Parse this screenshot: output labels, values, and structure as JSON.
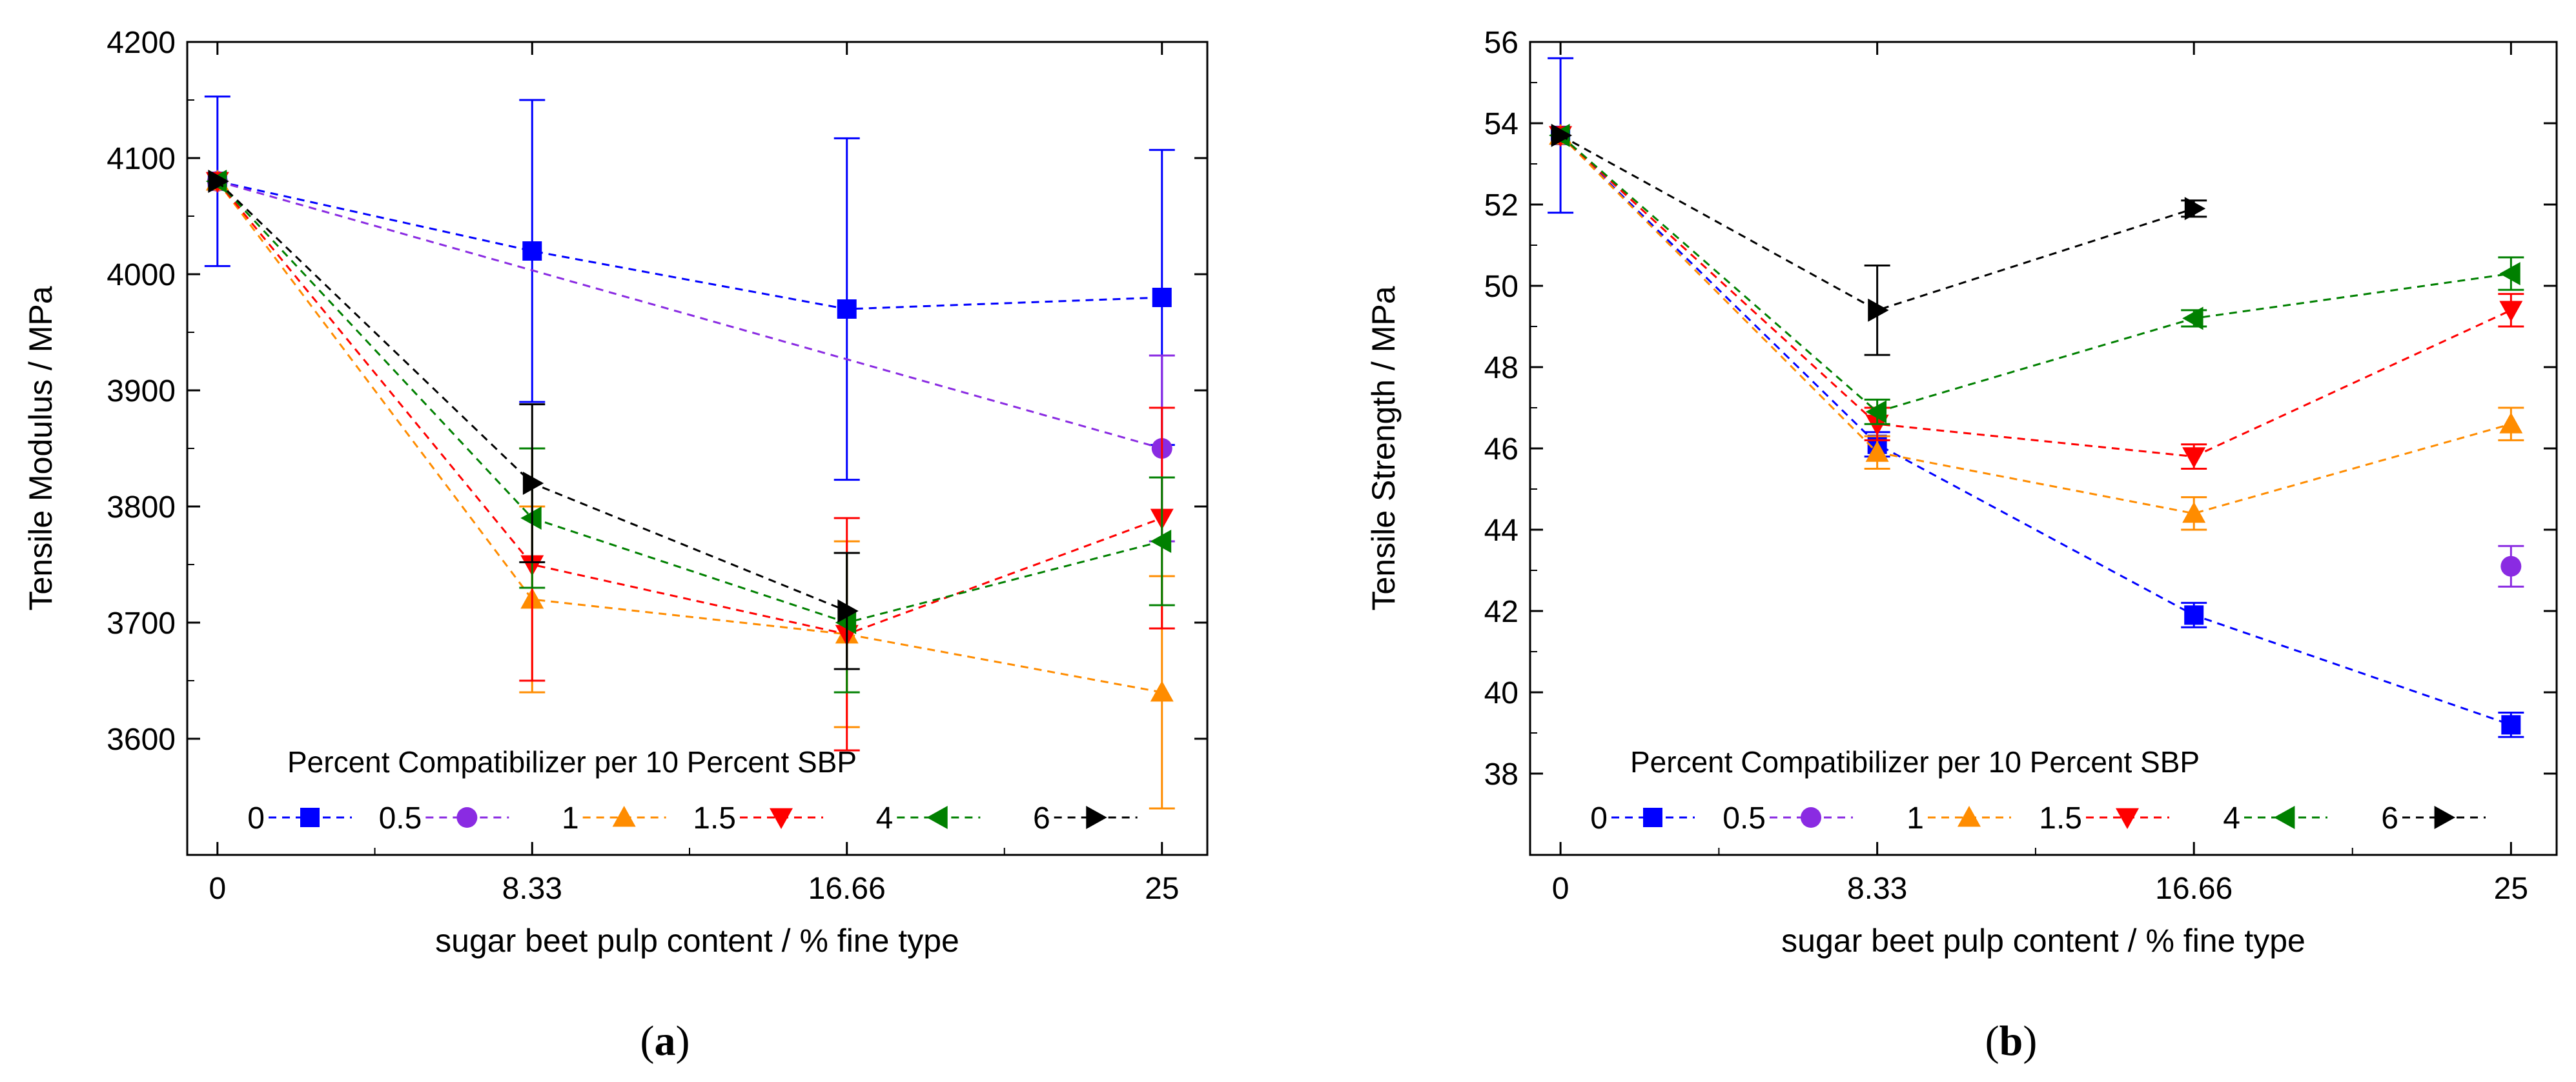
{
  "figure": {
    "legend_title": "Percent Compatibilizer per 10 Percent SBP",
    "series_styles": [
      {
        "name": "0",
        "color": "#0000ff",
        "marker": "square"
      },
      {
        "name": "0.5",
        "color": "#8a2be2",
        "marker": "circle"
      },
      {
        "name": "1",
        "color": "#ff8c00",
        "marker": "triangle-up"
      },
      {
        "name": "1.5",
        "color": "#ff0000",
        "marker": "triangle-down"
      },
      {
        "name": "4",
        "color": "#008000",
        "marker": "triangle-left"
      },
      {
        "name": "6",
        "color": "#000000",
        "marker": "triangle-right"
      }
    ]
  },
  "chart_data": [
    {
      "type": "line",
      "panel_caption": {
        "open": "(",
        "letter": "a",
        "close": ")"
      },
      "title": "",
      "xlabel": "sugar beet pulp content / % fine type",
      "ylabel": "Tensile Modulus / MPa",
      "x_ticks": [
        0,
        8.33,
        16.66,
        25
      ],
      "x_tick_labels": [
        "0",
        "8.33",
        "16.66",
        "25"
      ],
      "xlim": [
        -0.8,
        26.2
      ],
      "ylim": [
        3500,
        4200
      ],
      "y_ticks": [
        3600,
        3700,
        3800,
        3900,
        4000,
        4100,
        4200
      ],
      "y_tick_labels": [
        "3600",
        "3700",
        "3800",
        "3900",
        "4000",
        "4100",
        "4200"
      ],
      "legend_position": "bottom",
      "series": [
        {
          "name": "0",
          "x": [
            0,
            8.33,
            16.66,
            25
          ],
          "y": [
            4080,
            4020,
            3970,
            3980
          ],
          "err": [
            73,
            130,
            147,
            127
          ]
        },
        {
          "name": "0.5",
          "x": [
            0,
            25
          ],
          "y": [
            4080,
            3850
          ],
          "err": [
            0,
            80
          ]
        },
        {
          "name": "1",
          "x": [
            0,
            8.33,
            16.66,
            25
          ],
          "y": [
            4080,
            3720,
            3690,
            3640
          ],
          "err": [
            0,
            80,
            80,
            100
          ]
        },
        {
          "name": "1.5",
          "x": [
            0,
            8.33,
            16.66,
            25
          ],
          "y": [
            4080,
            3750,
            3690,
            3790
          ],
          "err": [
            0,
            100,
            100,
            95
          ]
        },
        {
          "name": "4",
          "x": [
            0,
            8.33,
            16.66,
            25
          ],
          "y": [
            4080,
            3790,
            3700,
            3770
          ],
          "err": [
            0,
            60,
            60,
            55
          ]
        },
        {
          "name": "6",
          "x": [
            0,
            8.33,
            16.66
          ],
          "y": [
            4080,
            3820,
            3710
          ],
          "err": [
            0,
            68,
            50
          ]
        }
      ]
    },
    {
      "type": "line",
      "panel_caption": {
        "open": "(",
        "letter": "b",
        "close": ")"
      },
      "title": "",
      "xlabel": "sugar beet pulp content / % fine type",
      "ylabel": "Tensile Strength / MPa",
      "x_ticks": [
        0,
        8.33,
        16.66,
        25
      ],
      "x_tick_labels": [
        "0",
        "8.33",
        "16.66",
        "25"
      ],
      "xlim": [
        -0.8,
        26.2
      ],
      "ylim": [
        36,
        56
      ],
      "y_ticks": [
        38,
        40,
        42,
        44,
        46,
        48,
        50,
        52,
        54,
        56
      ],
      "y_tick_labels": [
        "38",
        "40",
        "42",
        "44",
        "46",
        "48",
        "50",
        "52",
        "54",
        "56"
      ],
      "legend_position": "bottom",
      "series": [
        {
          "name": "0",
          "x": [
            0,
            8.33,
            16.66,
            25
          ],
          "y": [
            53.7,
            46.1,
            41.9,
            39.2
          ],
          "err": [
            1.9,
            0.3,
            0.3,
            0.3
          ]
        },
        {
          "name": "0.5",
          "x": [
            25
          ],
          "y": [
            43.1
          ],
          "err": [
            0.5
          ]
        },
        {
          "name": "1",
          "x": [
            0,
            8.33,
            16.66,
            25
          ],
          "y": [
            53.7,
            45.9,
            44.4,
            46.6
          ],
          "err": [
            0,
            0.4,
            0.4,
            0.4
          ]
        },
        {
          "name": "1.5",
          "x": [
            0,
            8.33,
            16.66,
            25
          ],
          "y": [
            53.7,
            46.6,
            45.8,
            49.4
          ],
          "err": [
            0,
            0.4,
            0.3,
            0.4
          ]
        },
        {
          "name": "4",
          "x": [
            0,
            8.33,
            16.66,
            25
          ],
          "y": [
            53.7,
            46.9,
            49.2,
            50.3
          ],
          "err": [
            0,
            0.3,
            0.2,
            0.4
          ]
        },
        {
          "name": "6",
          "x": [
            0,
            8.33,
            16.66
          ],
          "y": [
            53.7,
            49.4,
            51.9
          ],
          "err": [
            0,
            1.1,
            0.2
          ]
        }
      ]
    }
  ]
}
